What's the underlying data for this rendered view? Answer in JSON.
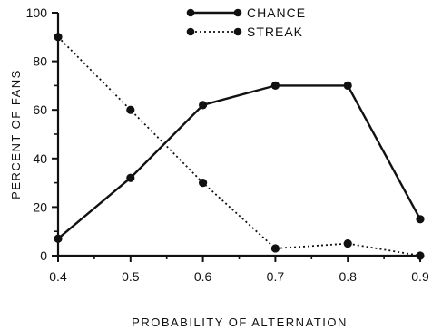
{
  "chart_data": {
    "type": "line",
    "title": "",
    "xlabel": "PROBABILITY OF ALTERNATION",
    "ylabel": "PERCENT OF FANS",
    "x": [
      0.4,
      0.5,
      0.6,
      0.7,
      0.8,
      0.9
    ],
    "x_tick_labels": [
      "0.4",
      "0.5",
      "0.6",
      "0.7",
      "0.8",
      "0.9"
    ],
    "y_ticks": [
      0,
      20,
      40,
      60,
      80,
      100
    ],
    "y_tick_labels": [
      "0",
      "20",
      "40",
      "60",
      "80",
      "100"
    ],
    "xlim": [
      0.4,
      0.9
    ],
    "ylim": [
      0,
      100
    ],
    "grid": false,
    "legend_position": "top-center",
    "series": [
      {
        "name": "CHANCE",
        "line_style": "solid",
        "values": [
          7,
          32,
          62,
          70,
          70,
          15
        ]
      },
      {
        "name": "STREAK",
        "line_style": "dotted",
        "values": [
          90,
          60,
          30,
          3,
          5,
          0
        ]
      }
    ],
    "colors": {
      "ink": "#111111",
      "background": "#ffffff"
    }
  }
}
